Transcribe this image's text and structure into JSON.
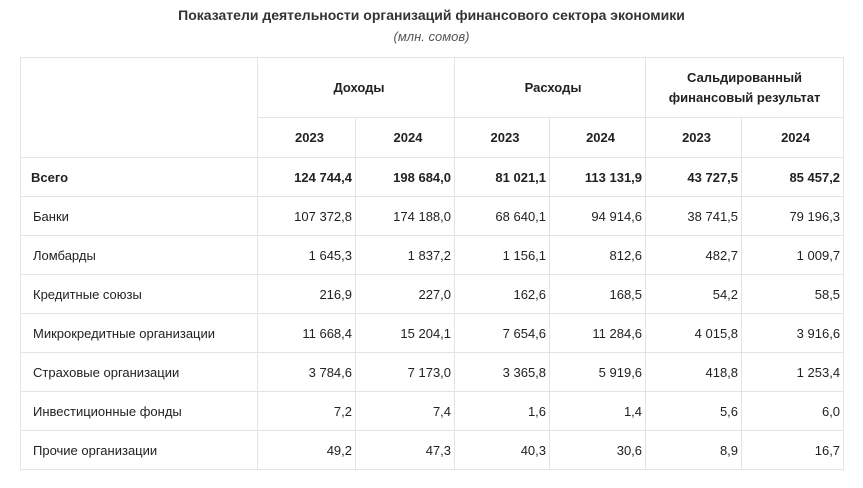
{
  "title": "Показатели деятельности организаций финансового сектора экономики",
  "subtitle": "(млн. сомов)",
  "table": {
    "groups": [
      "Доходы",
      "Расходы",
      "Сальдированный финансовый результат"
    ],
    "years": [
      "2023",
      "2024",
      "2023",
      "2024",
      "2023",
      "2024"
    ],
    "rows": [
      {
        "label": "Всего",
        "total": true,
        "values": [
          "124 744,4",
          "198 684,0",
          "81 021,1",
          "113 131,9",
          "43 727,5",
          "85 457,2"
        ]
      },
      {
        "label": "Банки",
        "total": false,
        "values": [
          "107 372,8",
          "174 188,0",
          "68 640,1",
          "94 914,6",
          "38 741,5",
          "79 196,3"
        ]
      },
      {
        "label": "Ломбарды",
        "total": false,
        "values": [
          "1 645,3",
          "1 837,2",
          "1 156,1",
          "812,6",
          "482,7",
          "1 009,7"
        ]
      },
      {
        "label": "Кредитные союзы",
        "total": false,
        "values": [
          "216,9",
          "227,0",
          "162,6",
          "168,5",
          "54,2",
          "58,5"
        ]
      },
      {
        "label": "Микрокредитные организации",
        "total": false,
        "values": [
          "11 668,4",
          "15 204,1",
          "7 654,6",
          "11 284,6",
          "4 015,8",
          "3 916,6"
        ]
      },
      {
        "label": "Страховые организации",
        "total": false,
        "values": [
          "3 784,6",
          "7 173,0",
          "3 365,8",
          "5 919,6",
          "418,8",
          "1 253,4"
        ]
      },
      {
        "label": "Инвестиционные фонды",
        "total": false,
        "values": [
          "7,2",
          "7,4",
          "1,6",
          "1,4",
          "5,6",
          "6,0"
        ]
      },
      {
        "label": "Прочие организации",
        "total": false,
        "values": [
          "49,2",
          "47,3",
          "40,3",
          "30,6",
          "8,9",
          "16,7"
        ]
      }
    ]
  }
}
